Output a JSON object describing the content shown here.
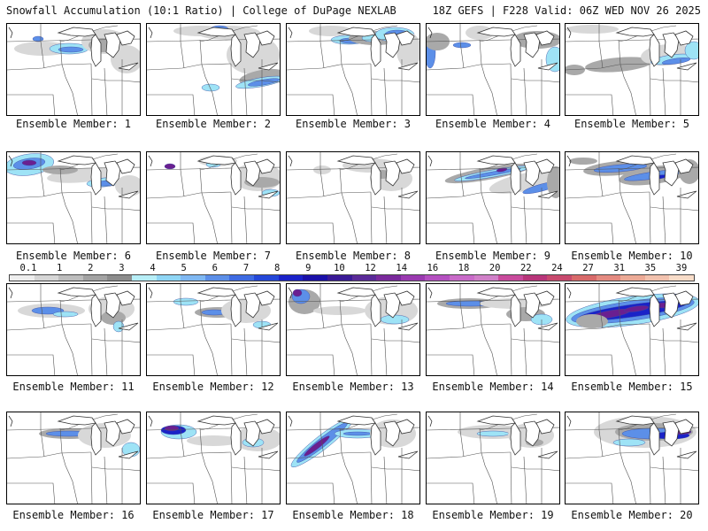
{
  "header": {
    "title_left": "Snowfall Accumulation (10:1 Ratio) | College of DuPage NEXLAB",
    "title_right": "18Z GEFS | F228 Valid: 06Z WED NOV 26 2025"
  },
  "panels": [
    {
      "label": "Ensemble Member: 1"
    },
    {
      "label": "Ensemble Member: 2"
    },
    {
      "label": "Ensemble Member: 3"
    },
    {
      "label": "Ensemble Member: 4"
    },
    {
      "label": "Ensemble Member: 5"
    },
    {
      "label": "Ensemble Member: 6"
    },
    {
      "label": "Ensemble Member: 7"
    },
    {
      "label": "Ensemble Member: 8"
    },
    {
      "label": "Ensemble Member: 9"
    },
    {
      "label": "Ensemble Member: 10"
    },
    {
      "label": "Ensemble Member: 11"
    },
    {
      "label": "Ensemble Member: 12"
    },
    {
      "label": "Ensemble Member: 13"
    },
    {
      "label": "Ensemble Member: 14"
    },
    {
      "label": "Ensemble Member: 15"
    },
    {
      "label": "Ensemble Member: 16"
    },
    {
      "label": "Ensemble Member: 17"
    },
    {
      "label": "Ensemble Member: 18"
    },
    {
      "label": "Ensemble Member: 19"
    },
    {
      "label": "Ensemble Member: 20"
    }
  ],
  "colorbar": {
    "labels": [
      "0.1",
      "1",
      "2",
      "3",
      "4",
      "5",
      "6",
      "7",
      "8",
      "9",
      "10",
      "12",
      "14",
      "16",
      "18",
      "20",
      "22",
      "24",
      "27",
      "31",
      "35",
      "39"
    ],
    "colors": [
      "#eeeeee",
      "#d6d6d6",
      "#bdbdbd",
      "#a3a3a3",
      "#8c8c8c",
      "#b7eef7",
      "#8fd6f5",
      "#7fb8f2",
      "#5c8fe8",
      "#3e6be2",
      "#2447d8",
      "#1a22c8",
      "#1a10a8",
      "#3a1a96",
      "#5a2a98",
      "#7a2a9c",
      "#9a3ab0",
      "#b450c0",
      "#c86ac8",
      "#d080c8",
      "#c84a9c",
      "#b8357a",
      "#c84a6e",
      "#d86a6a",
      "#e48a80",
      "#ecaa96",
      "#f2c2ae",
      "#f8dcc8"
    ]
  }
}
